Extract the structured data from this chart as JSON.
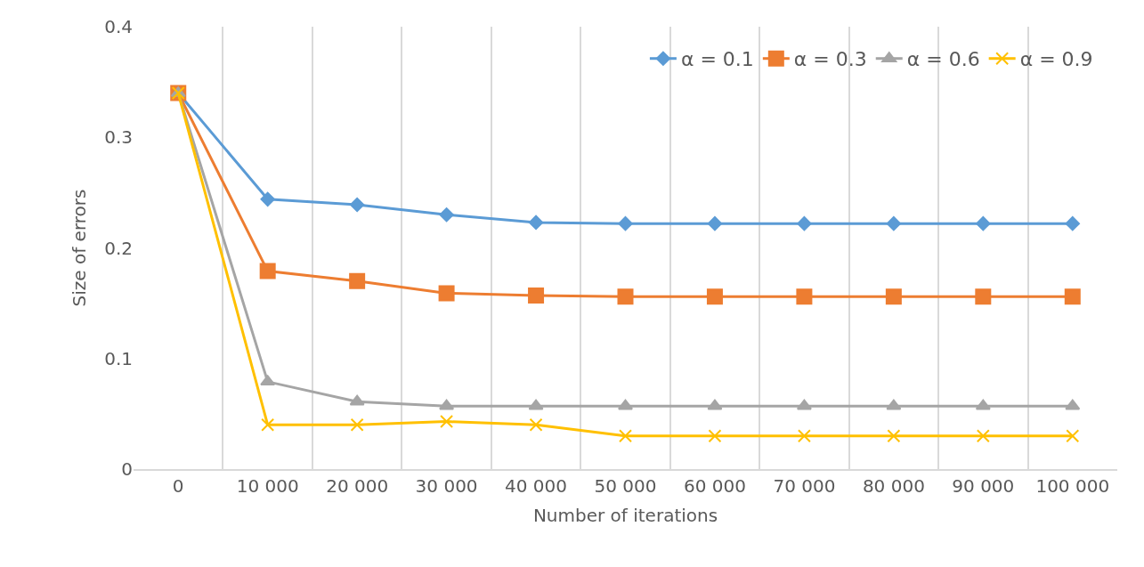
{
  "chart_data": {
    "type": "line",
    "xlabel": "Number of iterations",
    "ylabel": "Size of errors",
    "categories": [
      "0",
      "10 000",
      "20 000",
      "30 000",
      "40 000",
      "50 000",
      "60 000",
      "70 000",
      "80 000",
      "90 000",
      "100 000"
    ],
    "series": [
      {
        "name": "α = 0.1",
        "color": "#5b9bd5",
        "marker": "diamond",
        "values": [
          0.34,
          0.244,
          0.239,
          0.23,
          0.223,
          0.222,
          0.222,
          0.222,
          0.222,
          0.222,
          0.222
        ]
      },
      {
        "name": "α = 0.3",
        "color": "#ed7d31",
        "marker": "square",
        "values": [
          0.34,
          0.179,
          0.17,
          0.159,
          0.157,
          0.156,
          0.156,
          0.156,
          0.156,
          0.156,
          0.156
        ]
      },
      {
        "name": "α = 0.6",
        "color": "#a5a5a5",
        "marker": "triangle",
        "values": [
          0.34,
          0.079,
          0.061,
          0.057,
          0.057,
          0.057,
          0.057,
          0.057,
          0.057,
          0.057,
          0.057
        ]
      },
      {
        "name": "α = 0.9",
        "color": "#ffc000",
        "marker": "cross",
        "values": [
          0.34,
          0.04,
          0.04,
          0.043,
          0.04,
          0.03,
          0.03,
          0.03,
          0.03,
          0.03,
          0.03
        ]
      }
    ],
    "ylim": [
      0,
      0.4
    ],
    "yticks": [
      0,
      0.1,
      0.2,
      0.3,
      0.4
    ],
    "grid": "x",
    "legend": "top right",
    "line_style": "solid"
  }
}
